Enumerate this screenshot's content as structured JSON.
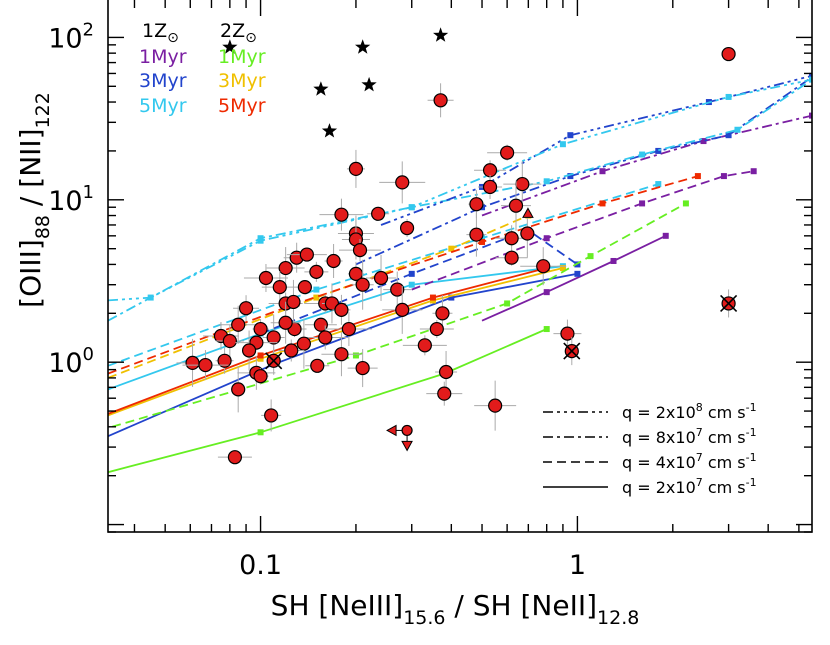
{
  "chart_data": {
    "type": "scatter",
    "xlabel": {
      "main": "SH [NeIII]",
      "sub1": "15.6",
      "mid": " / SH [NeII]",
      "sub2": "12.8"
    },
    "ylabel": {
      "main": "[OIII]",
      "sub1": "88",
      "mid": " / [NII]",
      "sub2": "122"
    },
    "xscale": "log",
    "yscale": "log",
    "xlim": [
      0.033,
      5.5
    ],
    "ylim": [
      0.09,
      170
    ],
    "x_ticklabels": [
      {
        "v": 0.1,
        "label": "0.1"
      },
      {
        "v": 1,
        "label": "1"
      }
    ],
    "y_ticklabels": [
      {
        "v": 1,
        "base": "10",
        "exp": "0"
      },
      {
        "v": 10,
        "base": "10",
        "exp": "1"
      },
      {
        "v": 100,
        "base": "10",
        "exp": "2"
      }
    ],
    "metallicity_legend": [
      {
        "label": "1Z",
        "symbol": "⊙",
        "color": "#000000"
      },
      {
        "label": "2Z",
        "symbol": "⊙",
        "color": "#000000"
      }
    ],
    "age_legend": [
      {
        "label": "1Myr",
        "color": "#7a1fa2"
      },
      {
        "label": "3Myr",
        "color": "#2244cc"
      },
      {
        "label": "5Myr",
        "color": "#33c8ee"
      },
      {
        "label": "1Myr",
        "color": "#66ee22"
      },
      {
        "label": "3Myr",
        "color": "#f0c000"
      },
      {
        "label": "5Myr",
        "color": "#ee2a00"
      }
    ],
    "linestyle_legend": [
      {
        "label": "q = 2x10",
        "exp": "8",
        "unit": " cm s",
        "unit_exp": "-1",
        "dash": "10,4,3,4,3,4,3,4"
      },
      {
        "label": "q = 8x10",
        "exp": "7",
        "unit": " cm s",
        "unit_exp": "-1",
        "dash": "10,4,3,4"
      },
      {
        "label": "q = 4x10",
        "exp": "7",
        "unit": " cm s",
        "unit_exp": "-1",
        "dash": "9,5"
      },
      {
        "label": "q = 2x10",
        "exp": "7",
        "unit": " cm s",
        "unit_exp": "-1",
        "dash": ""
      }
    ],
    "model_tracks": [
      {
        "color": "#7a1fa2",
        "dash": "",
        "x": [
          0.5,
          0.8,
          1.3,
          1.9
        ],
        "y": [
          1.8,
          2.7,
          4.2,
          6.0
        ]
      },
      {
        "color": "#2244cc",
        "dash": "",
        "x": [
          0.033,
          0.11,
          0.4,
          1.0
        ],
        "y": [
          0.35,
          0.97,
          2.5,
          3.5
        ]
      },
      {
        "color": "#33c8ee",
        "dash": "",
        "x": [
          0.033,
          0.1,
          0.3,
          0.9
        ],
        "y": [
          0.68,
          1.5,
          3.0,
          3.9
        ]
      },
      {
        "color": "#66ee22",
        "dash": "",
        "x": [
          0.033,
          0.1,
          0.38,
          0.8
        ],
        "y": [
          0.21,
          0.37,
          0.85,
          1.6
        ]
      },
      {
        "color": "#f0c000",
        "dash": "",
        "x": [
          0.033,
          0.1,
          0.35,
          0.9
        ],
        "y": [
          0.47,
          1.05,
          2.4,
          3.8
        ]
      },
      {
        "color": "#ee2a00",
        "dash": "",
        "x": [
          0.033,
          0.1,
          0.35,
          0.8
        ],
        "y": [
          0.48,
          1.1,
          2.5,
          3.8
        ]
      },
      {
        "color": "#7a1fa2",
        "dash": "9,5",
        "x": [
          0.3,
          0.8,
          1.6,
          2.9,
          3.6
        ],
        "y": [
          2.8,
          5.8,
          9.5,
          14.0,
          15.0
        ]
      },
      {
        "color": "#2244cc",
        "dash": "9,5",
        "x": [
          0.1,
          0.3,
          0.7,
          1.0
        ],
        "y": [
          1.5,
          3.5,
          6.5,
          4.0
        ]
      },
      {
        "color": "#33c8ee",
        "dash": "9,5",
        "x": [
          0.033,
          0.15,
          0.5,
          1.8
        ],
        "y": [
          0.95,
          2.8,
          5.8,
          12.5
        ]
      },
      {
        "color": "#66ee22",
        "dash": "9,5",
        "x": [
          0.034,
          0.2,
          0.6,
          1.1,
          2.2
        ],
        "y": [
          0.4,
          1.1,
          2.3,
          4.5,
          9.5
        ]
      },
      {
        "color": "#f0c000",
        "dash": "9,5",
        "x": [
          0.033,
          0.15,
          0.4,
          0.7
        ],
        "y": [
          0.8,
          2.5,
          5.0,
          8.0
        ]
      },
      {
        "color": "#ee2a00",
        "dash": "9,5",
        "x": [
          0.033,
          0.13,
          0.5,
          1.2,
          2.4
        ],
        "y": [
          0.85,
          2.3,
          5.5,
          9.5,
          14.0
        ]
      },
      {
        "color": "#7a1fa2",
        "dash": "10,4,3,4",
        "x": [
          0.5,
          1.2,
          2.5,
          5.5
        ],
        "y": [
          8.0,
          15.0,
          23.0,
          33.0
        ]
      },
      {
        "color": "#2244cc",
        "dash": "10,4,3,4",
        "x": [
          0.2,
          0.5,
          0.95,
          1.8,
          3.0,
          5.5
        ],
        "y": [
          4.0,
          9.0,
          14.0,
          20.0,
          25.0,
          57.0
        ]
      },
      {
        "color": "#33c8ee",
        "dash": "10,4,3,4",
        "x": [
          0.033,
          0.1,
          0.3,
          0.8,
          1.6,
          3.2,
          5.5
        ],
        "y": [
          1.8,
          5.8,
          9.0,
          13.0,
          19.0,
          27.0,
          55.0
        ]
      },
      {
        "color": "#2244cc",
        "dash": "10,4,3,4,3,4,3,4",
        "x": [
          0.24,
          0.5,
          0.95,
          2.6,
          5.5
        ],
        "y": [
          7.0,
          12.0,
          25.0,
          40.0,
          58.0
        ]
      },
      {
        "color": "#33c8ee",
        "dash": "10,4,3,4,3,4,3,4",
        "x": [
          0.033,
          0.045,
          0.1,
          0.3,
          0.9,
          3.0,
          5.5
        ],
        "y": [
          2.4,
          2.5,
          5.6,
          9.0,
          22.0,
          43.0,
          55.0
        ]
      }
    ],
    "stars": [
      {
        "x": 0.08,
        "y": 87
      },
      {
        "x": 0.21,
        "y": 87
      },
      {
        "x": 0.37,
        "y": 103
      },
      {
        "x": 0.155,
        "y": 48
      },
      {
        "x": 0.22,
        "y": 51
      },
      {
        "x": 0.165,
        "y": 26.5
      }
    ],
    "galaxies": [
      {
        "x": 3.0,
        "y": 79
      },
      {
        "x": 0.37,
        "y": 41
      },
      {
        "x": 0.6,
        "y": 19.5
      },
      {
        "x": 0.2,
        "y": 15.5
      },
      {
        "x": 0.53,
        "y": 15.2
      },
      {
        "x": 0.28,
        "y": 12.8
      },
      {
        "x": 0.53,
        "y": 12.0
      },
      {
        "x": 0.67,
        "y": 12.5
      },
      {
        "x": 0.48,
        "y": 9.4
      },
      {
        "x": 0.64,
        "y": 9.2
      },
      {
        "x": 0.18,
        "y": 8.1
      },
      {
        "x": 0.235,
        "y": 8.2
      },
      {
        "x": 0.2,
        "y": 6.2
      },
      {
        "x": 0.29,
        "y": 6.7
      },
      {
        "x": 0.2,
        "y": 5.7
      },
      {
        "x": 0.206,
        "y": 4.9
      },
      {
        "x": 0.48,
        "y": 6.1
      },
      {
        "x": 0.62,
        "y": 5.8
      },
      {
        "x": 0.695,
        "y": 6.2
      },
      {
        "x": 0.13,
        "y": 4.4
      },
      {
        "x": 0.14,
        "y": 4.6
      },
      {
        "x": 0.17,
        "y": 4.2
      },
      {
        "x": 0.62,
        "y": 4.4
      },
      {
        "x": 0.78,
        "y": 3.9
      },
      {
        "x": 0.15,
        "y": 3.6
      },
      {
        "x": 0.12,
        "y": 3.8
      },
      {
        "x": 0.2,
        "y": 3.5
      },
      {
        "x": 0.24,
        "y": 3.3
      },
      {
        "x": 0.104,
        "y": 3.3
      },
      {
        "x": 0.21,
        "y": 3.0
      },
      {
        "x": 0.115,
        "y": 2.9
      },
      {
        "x": 0.138,
        "y": 2.9
      },
      {
        "x": 0.27,
        "y": 2.8
      },
      {
        "x": 0.16,
        "y": 2.3
      },
      {
        "x": 0.168,
        "y": 2.3
      },
      {
        "x": 0.12,
        "y": 2.3
      },
      {
        "x": 0.127,
        "y": 2.35
      },
      {
        "x": 0.09,
        "y": 2.15
      },
      {
        "x": 0.28,
        "y": 2.1
      },
      {
        "x": 0.18,
        "y": 2.1
      },
      {
        "x": 0.155,
        "y": 1.7
      },
      {
        "x": 0.19,
        "y": 1.6
      },
      {
        "x": 0.128,
        "y": 1.6
      },
      {
        "x": 0.085,
        "y": 1.7
      },
      {
        "x": 0.1,
        "y": 1.6
      },
      {
        "x": 0.12,
        "y": 1.75
      },
      {
        "x": 0.16,
        "y": 1.42
      },
      {
        "x": 0.11,
        "y": 1.42
      },
      {
        "x": 0.075,
        "y": 1.45
      },
      {
        "x": 0.137,
        "y": 1.3
      },
      {
        "x": 0.08,
        "y": 1.35
      },
      {
        "x": 0.097,
        "y": 1.32
      },
      {
        "x": 0.375,
        "y": 2.0
      },
      {
        "x": 0.36,
        "y": 1.6
      },
      {
        "x": 0.092,
        "y": 1.18
      },
      {
        "x": 0.125,
        "y": 1.18
      },
      {
        "x": 0.18,
        "y": 1.12
      },
      {
        "x": 0.077,
        "y": 1.02
      },
      {
        "x": 0.061,
        "y": 0.99
      },
      {
        "x": 0.067,
        "y": 0.96
      },
      {
        "x": 0.151,
        "y": 0.95
      },
      {
        "x": 0.097,
        "y": 0.86
      },
      {
        "x": 0.1,
        "y": 0.82
      },
      {
        "x": 0.21,
        "y": 0.92
      },
      {
        "x": 0.33,
        "y": 1.27
      },
      {
        "x": 0.385,
        "y": 0.87
      },
      {
        "x": 0.38,
        "y": 0.64
      },
      {
        "x": 0.085,
        "y": 0.68
      },
      {
        "x": 0.93,
        "y": 1.5
      },
      {
        "x": 0.55,
        "y": 0.54
      },
      {
        "x": 0.108,
        "y": 0.47
      },
      {
        "x": 0.083,
        "y": 0.26
      }
    ],
    "crossed_galaxies": [
      {
        "x": 0.11,
        "y": 1.02
      },
      {
        "x": 0.96,
        "y": 1.17
      },
      {
        "x": 3.0,
        "y": 2.3
      }
    ],
    "limit_markers": [
      {
        "x": 0.29,
        "y": 0.38,
        "dir": "left"
      },
      {
        "x": 0.29,
        "y": 0.38,
        "dir": "down"
      },
      {
        "x": 0.698,
        "y": 7.8,
        "dir": "up"
      }
    ]
  }
}
